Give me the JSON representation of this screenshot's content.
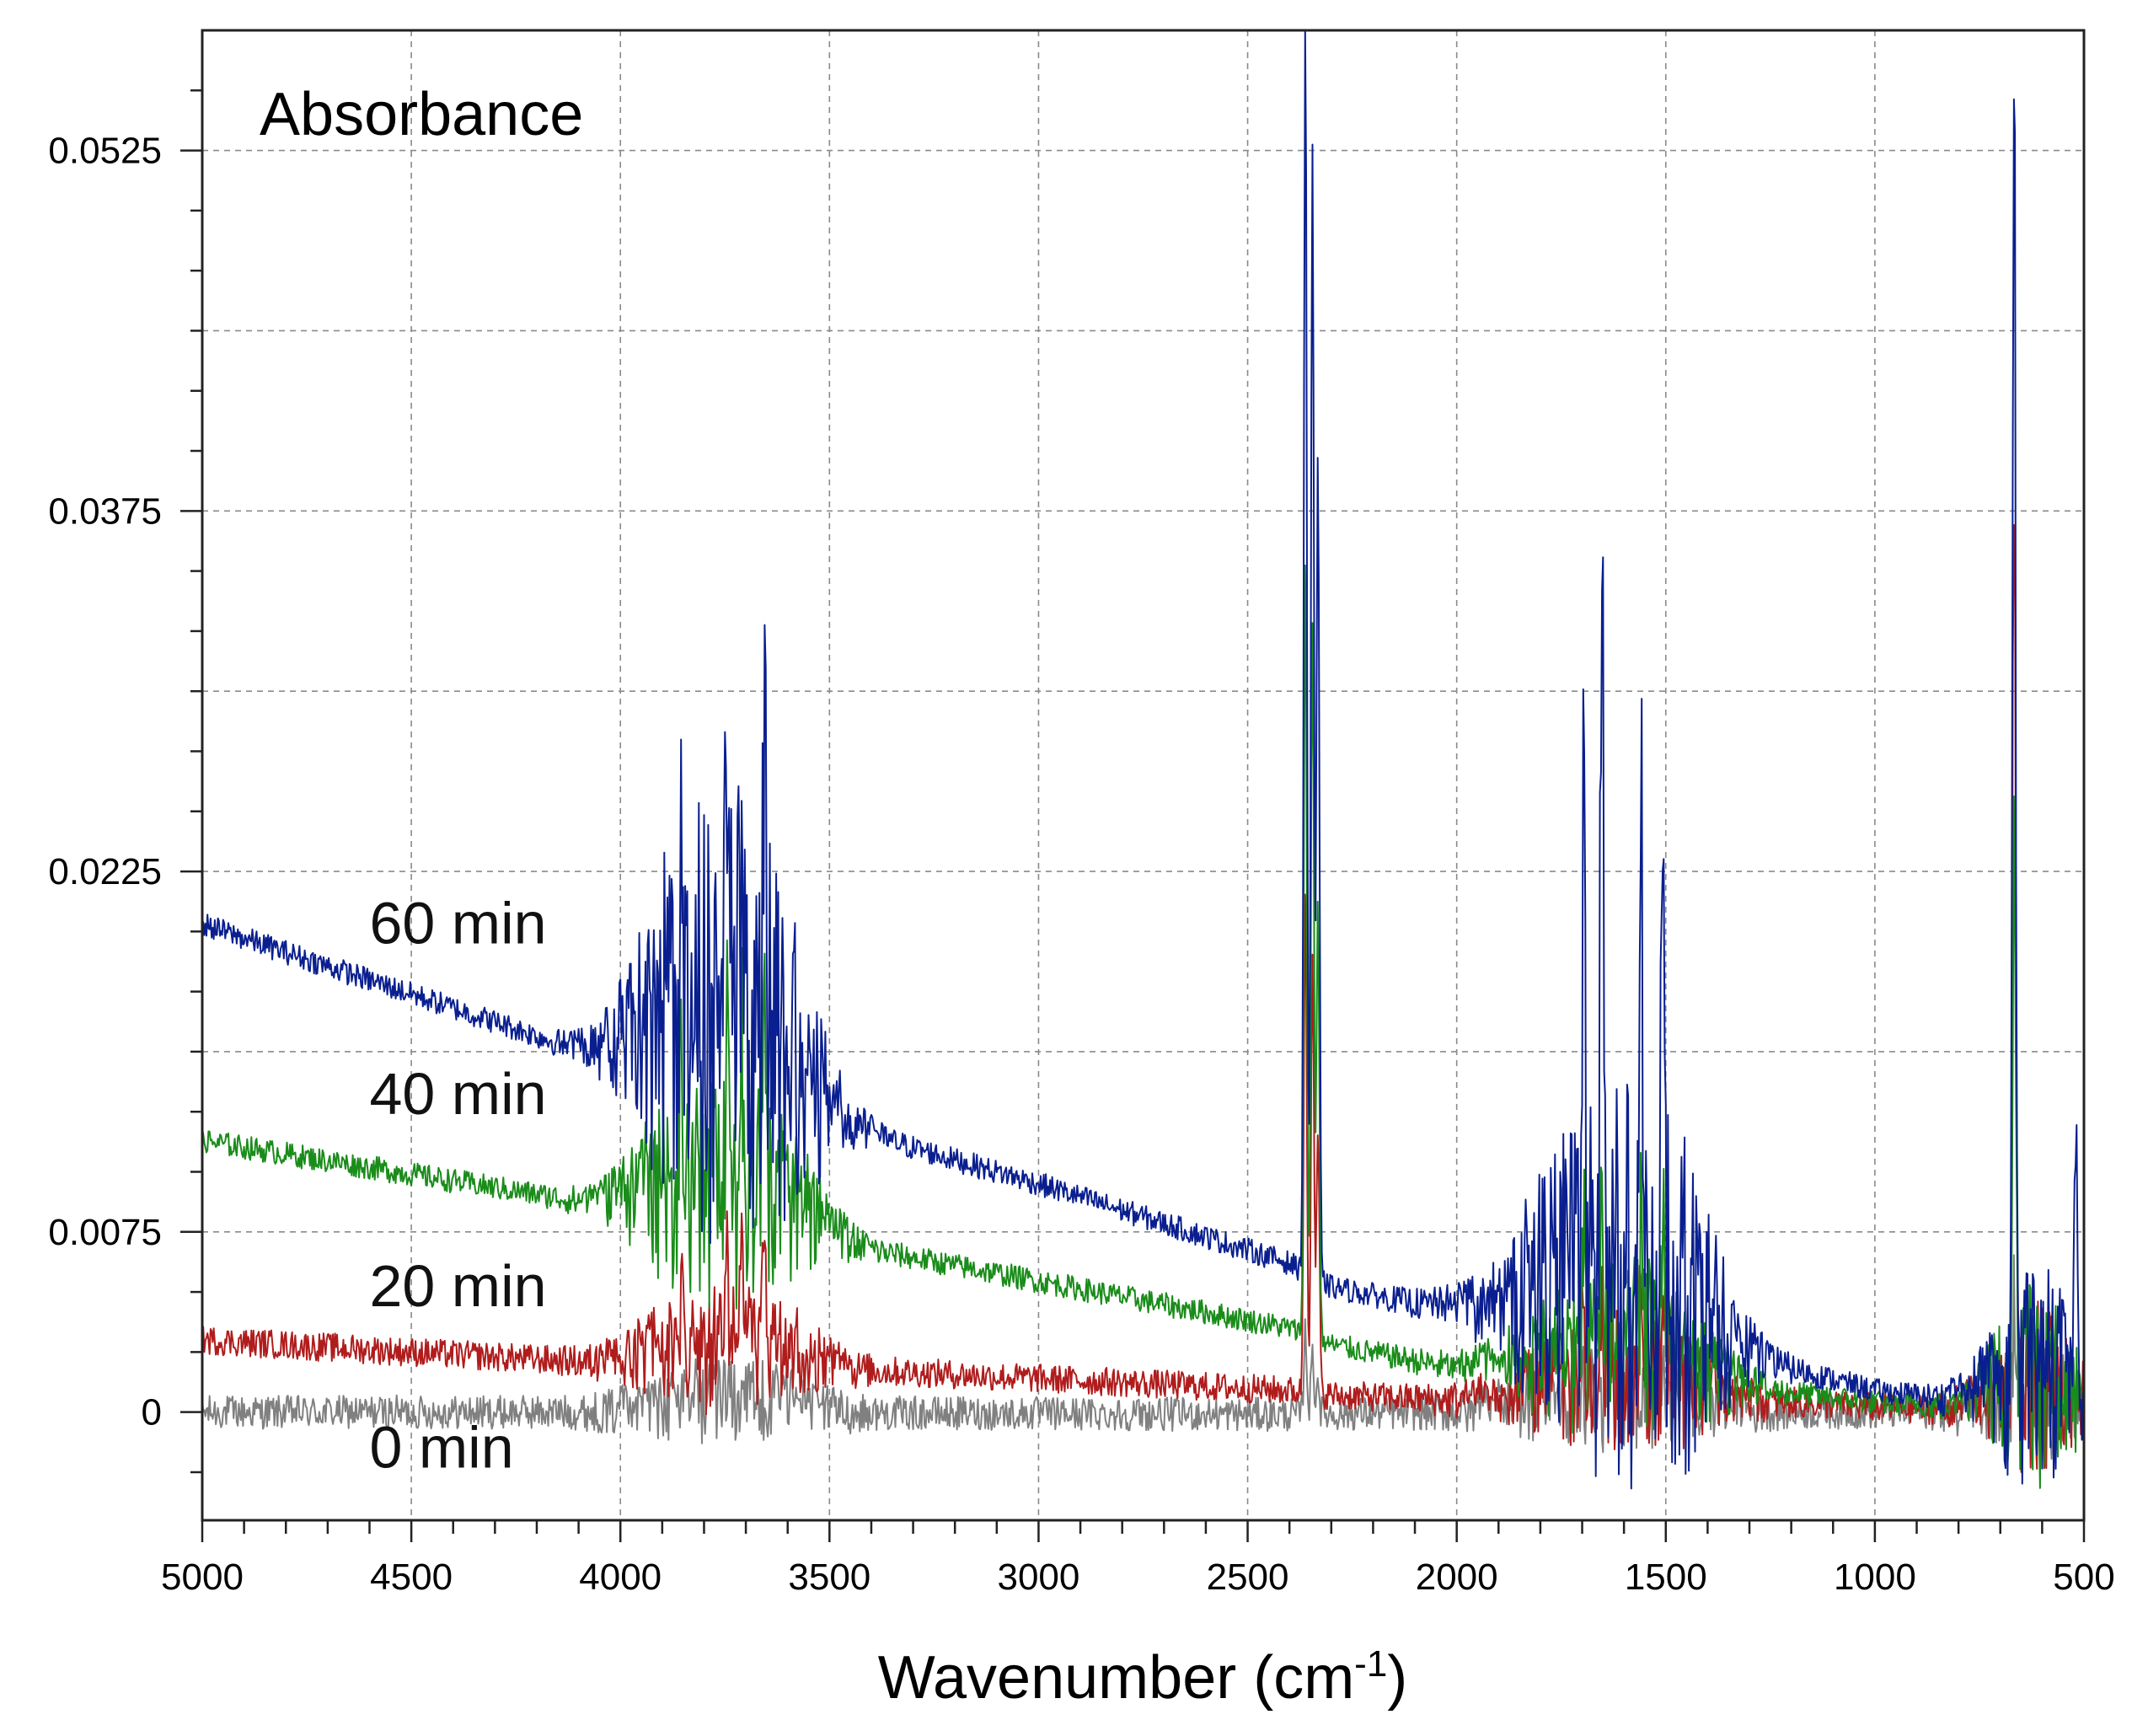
{
  "chart_data": {
    "type": "line",
    "title": "",
    "ylabel": "Absorbance",
    "xlabel_main": "Wavenumber (cm",
    "xlabel_sup": "-1",
    "xlabel_close": ")",
    "xlim": [
      5000,
      500
    ],
    "ylim": [
      -0.0045,
      0.0575
    ],
    "x_ticks": [
      5000,
      4500,
      4000,
      3500,
      3000,
      2500,
      2000,
      1500,
      1000,
      500
    ],
    "x_tick_labels": [
      "5000",
      "4500",
      "4000",
      "3500",
      "3000",
      "2500",
      "2000",
      "1500",
      "1000",
      "500"
    ],
    "y_ticks": [
      0,
      0.0075,
      0.0225,
      0.0375,
      0.0525
    ],
    "y_tick_labels": [
      "0",
      "0.0075",
      "0.0225",
      "0.0375",
      "0.0525"
    ],
    "grid": true,
    "x_grid_values": [
      4500,
      4000,
      3500,
      3000,
      2500,
      2000,
      1500,
      1000
    ],
    "y_grid_values": [
      0.0075,
      0.015,
      0.0225,
      0.03,
      0.0375,
      0.045,
      0.0525
    ],
    "series": [
      {
        "name": "0 min",
        "label": "0 min",
        "color": "#808080",
        "noise": 0.0007,
        "label_x": 4600,
        "label_y": -0.0023,
        "baseline": [
          [
            5000,
            0.0
          ],
          [
            4000,
            0.0
          ],
          [
            2400,
            -0.0001
          ],
          [
            2000,
            0.0
          ],
          [
            1000,
            0.0
          ],
          [
            500,
            0.0
          ]
        ],
        "bands": [
          [
            3850,
            140,
            0.0013
          ],
          [
            3650,
            140,
            0.0013
          ],
          [
            1700,
            200,
            0.0018
          ],
          [
            1500,
            150,
            0.0015
          ],
          [
            620,
            120,
            0.003
          ]
        ],
        "spikes": [
          [
            2362,
            0.0035
          ],
          [
            2345,
            0.0025
          ],
          [
            2332,
            0.0015
          ],
          [
            667,
            0.0035
          ]
        ]
      },
      {
        "name": "20 min",
        "label": "20 min",
        "color": "#b01c1c",
        "noise": 0.0006,
        "label_x": 4600,
        "label_y": 0.0044,
        "baseline": [
          [
            5000,
            0.003
          ],
          [
            4000,
            0.002
          ],
          [
            3600,
            0.0019
          ],
          [
            2400,
            0.0009
          ],
          [
            2300,
            0.0007
          ],
          [
            2000,
            0.0005
          ],
          [
            1200,
            0.0004
          ],
          [
            1000,
            0.0002
          ],
          [
            500,
            0.0
          ]
        ],
        "bands": [
          [
            3850,
            140,
            0.0024
          ],
          [
            3650,
            140,
            0.0024
          ],
          [
            1700,
            200,
            0.0023
          ],
          [
            1500,
            150,
            0.0023
          ],
          [
            620,
            120,
            0.004
          ]
        ],
        "spikes": [
          [
            3853,
            0.003
          ],
          [
            3745,
            0.0035
          ],
          [
            3710,
            0.003
          ],
          [
            3656,
            0.0035
          ],
          [
            2362,
            0.021
          ],
          [
            2345,
            0.018
          ],
          [
            2332,
            0.011
          ],
          [
            1697,
            0.004
          ],
          [
            1653,
            0.004
          ],
          [
            1559,
            0.003
          ],
          [
            1507,
            0.003
          ],
          [
            667,
            0.0395
          ]
        ]
      },
      {
        "name": "40 min",
        "label": "40 min",
        "color": "#1a8c1a",
        "noise": 0.0005,
        "label_x": 4600,
        "label_y": 0.0124,
        "baseline": [
          [
            5000,
            0.0113
          ],
          [
            4000,
            0.0085
          ],
          [
            3600,
            0.0074
          ],
          [
            2400,
            0.0035
          ],
          [
            2300,
            0.0028
          ],
          [
            2000,
            0.0018
          ],
          [
            1500,
            0.0012
          ],
          [
            1200,
            0.0008
          ],
          [
            1000,
            0.0004
          ],
          [
            500,
            0.0
          ]
        ],
        "bands": [
          [
            3850,
            140,
            0.0048
          ],
          [
            3650,
            140,
            0.0048
          ],
          [
            1700,
            200,
            0.0032
          ],
          [
            1500,
            150,
            0.0032
          ],
          [
            620,
            120,
            0.005
          ]
        ],
        "spikes": [
          [
            3853,
            0.006
          ],
          [
            3745,
            0.007
          ],
          [
            3710,
            0.006
          ],
          [
            3656,
            0.007
          ],
          [
            2362,
            0.032
          ],
          [
            2345,
            0.03
          ],
          [
            2332,
            0.018
          ],
          [
            1697,
            0.006
          ],
          [
            1653,
            0.006
          ],
          [
            1559,
            0.005
          ],
          [
            1507,
            0.005
          ],
          [
            667,
            0.021
          ]
        ]
      },
      {
        "name": "60 min",
        "label": "60 min",
        "color": "#0a1f8f",
        "noise": 0.0005,
        "label_x": 4600,
        "label_y": 0.0195,
        "baseline": [
          [
            5000,
            0.0203
          ],
          [
            4000,
            0.0145
          ],
          [
            3600,
            0.0125
          ],
          [
            3000,
            0.0095
          ],
          [
            2400,
            0.0062
          ],
          [
            2300,
            0.0052
          ],
          [
            2000,
            0.0042
          ],
          [
            1500,
            0.0028
          ],
          [
            1200,
            0.0018
          ],
          [
            1000,
            0.0009
          ],
          [
            800,
            0.0005
          ],
          [
            500,
            0.0
          ]
        ],
        "bands": [
          [
            3850,
            140,
            0.0095
          ],
          [
            3650,
            140,
            0.0095
          ],
          [
            1700,
            200,
            0.0075
          ],
          [
            1500,
            150,
            0.0075
          ],
          [
            620,
            120,
            0.006
          ]
        ],
        "spikes": [
          [
            3853,
            0.011
          ],
          [
            3745,
            0.012
          ],
          [
            3710,
            0.01
          ],
          [
            3656,
            0.012
          ],
          [
            2362,
            0.053
          ],
          [
            2345,
            0.047
          ],
          [
            2332,
            0.034
          ],
          [
            1697,
            0.021
          ],
          [
            1653,
            0.034
          ],
          [
            1559,
            0.022
          ],
          [
            1507,
            0.017
          ],
          [
            667,
            0.056
          ],
          [
            520,
            0.012
          ]
        ]
      }
    ]
  }
}
